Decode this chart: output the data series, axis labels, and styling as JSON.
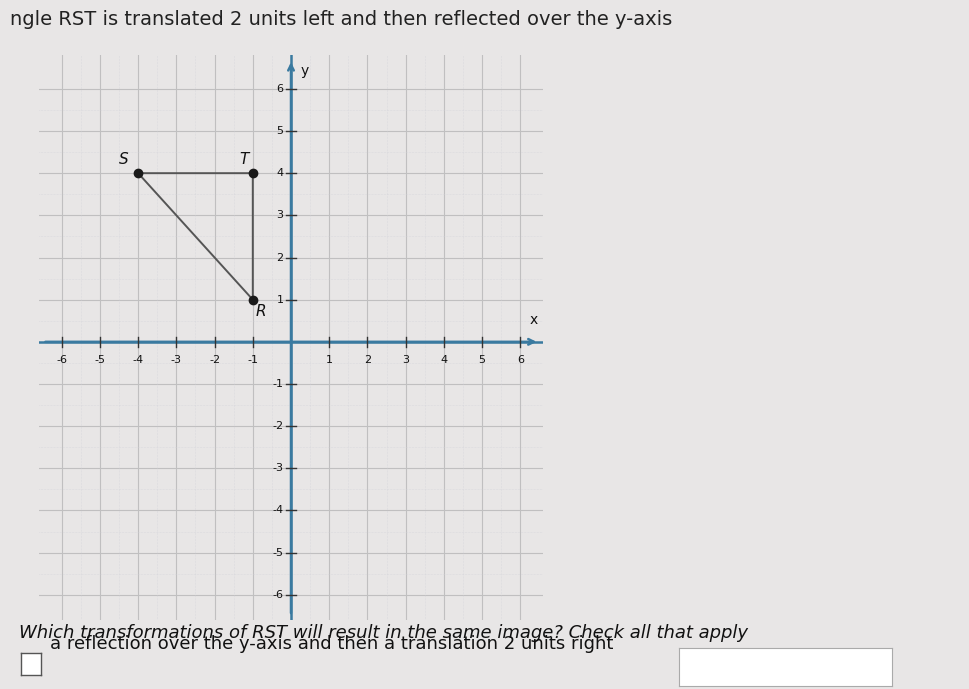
{
  "title_text": "ngle RST is translated 2 units left and then reflected over the y-axis",
  "question_text": "Which transformations of RST will result in the same image? Check all that apply",
  "answer_text": "a reflection over the y-axis and then a translation 2 units right",
  "triangle_RST": {
    "R": [
      -1,
      1
    ],
    "S": [
      -4,
      4
    ],
    "T": [
      -1,
      4
    ]
  },
  "point_color": "#1a1a1a",
  "line_color": "#555555",
  "axis_color": "#3a7aa0",
  "grid_solid_color": "#c0bfc0",
  "grid_dot_color": "#d0d0d8",
  "background_color": "#e8e6e6",
  "plot_bg_color": "#f5f4f4",
  "xlim": [
    -6.6,
    6.6
  ],
  "ylim": [
    -6.6,
    6.8
  ],
  "tick_positions": [
    -6,
    -5,
    -4,
    -3,
    -2,
    -1,
    1,
    2,
    3,
    4,
    5,
    6
  ],
  "label_fontsize": 10,
  "point_size": 6,
  "axis_label_y": "y",
  "axis_label_x": "x",
  "title_fontsize": 14,
  "question_fontsize": 13,
  "answer_fontsize": 13
}
